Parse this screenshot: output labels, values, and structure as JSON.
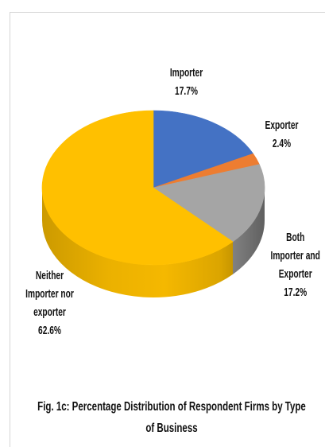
{
  "chart_data": {
    "type": "pie",
    "three_d": true,
    "legend_shown": false,
    "categories": [
      "Importer",
      "Exporter",
      "Both Importer and Exporter",
      "Neither Importer nor exporter"
    ],
    "values": [
      17.7,
      2.4,
      17.2,
      62.6
    ],
    "data_labels": [
      "17.7%",
      "2.4%",
      "17.2%",
      "62.6%"
    ],
    "colors": [
      "#4472C4",
      "#ED7D31",
      "#A5A5A5",
      "#FFC000"
    ],
    "caption_lines": [
      "Fig. 1c: Percentage Distribution of Respondent Firms by Type",
      "of Business"
    ]
  }
}
